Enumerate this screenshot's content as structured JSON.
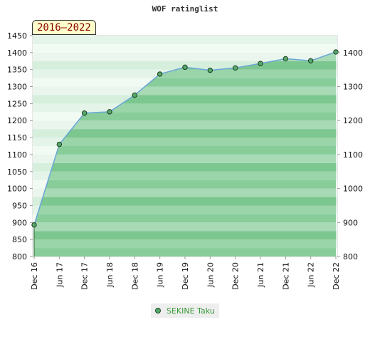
{
  "header": {
    "title": "WOF ratinglist",
    "period": "2016–2022"
  },
  "colors": {
    "area": "#3cab5c",
    "line": "#6aa6d8",
    "marker": "#56a86a",
    "legend_text": "#3a9a3a"
  },
  "chart_data": {
    "type": "area",
    "title": "WOF ratinglist",
    "categories": [
      "Dec 16",
      "Jun 17",
      "Dec 17",
      "Jun 18",
      "Dec 18",
      "Jun 19",
      "Dec 19",
      "Jun 20",
      "Dec 20",
      "Jun 21",
      "Dec 21",
      "Jun 22",
      "Dec 22"
    ],
    "series": [
      {
        "name": "SEKINE Taku",
        "values": [
          893,
          1130,
          1222,
          1226,
          1275,
          1337,
          1357,
          1348,
          1355,
          1368,
          1382,
          1376,
          1402
        ]
      }
    ],
    "y_left": {
      "min": 800,
      "max": 1450,
      "ticks": [
        800,
        850,
        900,
        950,
        1000,
        1050,
        1100,
        1150,
        1200,
        1250,
        1300,
        1350,
        1400,
        1450
      ]
    },
    "y_right": {
      "min": 800,
      "max": 1450,
      "ticks": [
        800,
        900,
        1000,
        1100,
        1200,
        1300,
        1400
      ]
    },
    "grid": true,
    "legend": "bottom-center"
  }
}
